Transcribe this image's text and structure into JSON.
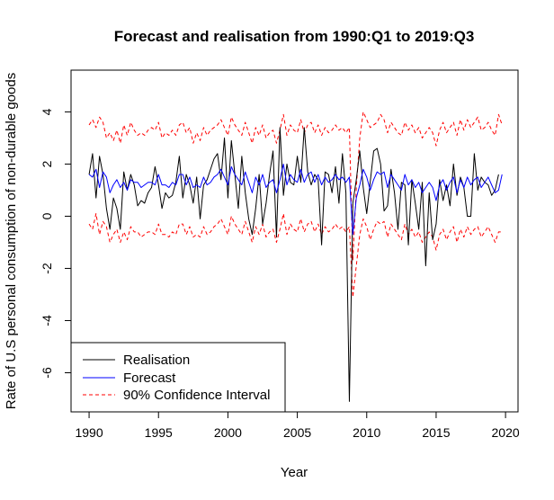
{
  "chart_data": {
    "type": "line",
    "title": "Forecast and realisation from 1990:Q1 to 2019:Q3",
    "xlabel": "Year",
    "ylabel": "Rate of U.S personal consumption of non-durable goods",
    "xlim": [
      1988.7,
      2020.9
    ],
    "ylim": [
      -7.5,
      5.6
    ],
    "xticks": [
      1990,
      1995,
      2000,
      2005,
      2010,
      2015,
      2020
    ],
    "yticks": [
      4,
      2,
      0,
      -2,
      -4,
      -6
    ],
    "legend_position": "bottom-left",
    "x_start": 1990.0,
    "x_step": 0.25,
    "series": [
      {
        "name": "Realisation",
        "color": "#000000",
        "dash": "solid",
        "values": [
          1.6,
          2.4,
          0.7,
          2.3,
          1.6,
          0.3,
          -0.5,
          0.7,
          0.3,
          -0.5,
          1.7,
          1.0,
          1.6,
          1.2,
          0.4,
          0.6,
          0.5,
          0.9,
          1.1,
          1.9,
          1.2,
          0.3,
          0.9,
          0.7,
          0.8,
          1.3,
          2.3,
          0.7,
          1.6,
          1.2,
          0.5,
          1.5,
          -0.1,
          1.2,
          1.4,
          1.8,
          2.2,
          2.4,
          1.4,
          3.0,
          0.7,
          2.9,
          1.6,
          0.3,
          2.3,
          0.9,
          -0.1,
          -0.7,
          0.3,
          1.6,
          -0.3,
          0.5,
          1.6,
          2.5,
          -0.8,
          3.4,
          0.8,
          2.0,
          1.3,
          1.2,
          2.3,
          1.3,
          3.4,
          1.7,
          1.2,
          1.6,
          1.4,
          -1.1,
          1.7,
          1.6,
          0.9,
          1.9,
          0.5,
          2.4,
          0.9,
          -7.1,
          0.5,
          1.4,
          2.5,
          1.1,
          0.1,
          1.3,
          2.5,
          2.6,
          2.0,
          0.2,
          0.4,
          1.8,
          0.9,
          -0.5,
          1.3,
          1.2,
          -1.1,
          1.4,
          0.5,
          -0.5,
          1.3,
          -1.9,
          0.9,
          -0.9,
          -0.3,
          1.4,
          0.6,
          1.2,
          0.4,
          2.0,
          0.8,
          1.5,
          1.1,
          0.0,
          0.0,
          2.4,
          1.0,
          1.5,
          1.3,
          1.2,
          0.8,
          1.0,
          1.6
        ]
      },
      {
        "name": "Forecast",
        "color": "#0000ff",
        "dash": "solid",
        "values": [
          1.6,
          1.5,
          1.8,
          1.1,
          1.7,
          1.5,
          0.9,
          1.2,
          1.4,
          1.1,
          1.3,
          1.0,
          1.4,
          1.3,
          1.3,
          1.1,
          1.2,
          1.3,
          1.3,
          1.2,
          1.6,
          1.2,
          1.2,
          1.1,
          1.3,
          1.2,
          1.6,
          1.6,
          1.2,
          1.5,
          1.1,
          1.2,
          1.1,
          1.5,
          1.2,
          1.3,
          1.5,
          1.6,
          1.8,
          1.5,
          1.2,
          1.9,
          1.6,
          1.4,
          1.2,
          1.7,
          1.3,
          0.9,
          1.5,
          1.2,
          1.6,
          1.1,
          1.3,
          1.4,
          0.9,
          1.4,
          2.0,
          1.2,
          1.6,
          1.4,
          1.3,
          1.8,
          1.3,
          1.6,
          1.7,
          1.3,
          1.6,
          1.2,
          1.5,
          1.3,
          1.4,
          1.6,
          1.4,
          1.5,
          1.3,
          1.5,
          -0.7,
          0.7,
          1.2,
          1.8,
          1.5,
          1.0,
          1.4,
          1.7,
          1.6,
          1.7,
          1.1,
          1.6,
          1.4,
          1.2,
          1.0,
          1.6,
          1.2,
          1.4,
          1.1,
          1.3,
          0.9,
          1.1,
          1.3,
          1.1,
          0.6,
          1.2,
          1.4,
          1.0,
          1.3,
          1.5,
          0.9,
          1.4,
          1.1,
          1.5,
          1.2,
          1.4,
          1.5,
          1.1,
          1.3,
          1.5,
          1.2,
          0.9,
          1.0,
          1.6
        ]
      },
      {
        "name": "90% Confidence Interval",
        "color": "#ff0000",
        "dash": "dashed",
        "upper": [
          3.5,
          3.7,
          3.4,
          3.8,
          3.6,
          3.0,
          3.2,
          2.9,
          3.3,
          2.8,
          3.5,
          3.1,
          3.6,
          3.3,
          3.1,
          3.2,
          3.1,
          3.3,
          3.4,
          3.3,
          3.6,
          3.0,
          3.2,
          3.1,
          3.3,
          3.1,
          3.5,
          3.6,
          3.2,
          3.4,
          2.8,
          3.2,
          2.9,
          3.4,
          3.1,
          3.3,
          3.4,
          3.5,
          3.7,
          3.4,
          3.1,
          3.8,
          3.5,
          3.3,
          3.1,
          3.6,
          3.2,
          2.8,
          3.4,
          3.1,
          3.5,
          3.0,
          3.2,
          3.3,
          2.8,
          3.3,
          3.9,
          3.1,
          3.5,
          3.3,
          3.2,
          3.7,
          3.2,
          3.5,
          3.6,
          3.2,
          3.5,
          3.1,
          3.4,
          3.2,
          3.3,
          3.5,
          3.3,
          3.4,
          3.2,
          3.4,
          -1.7,
          1.1,
          3.0,
          4.0,
          3.7,
          3.4,
          3.5,
          3.6,
          3.9,
          3.7,
          3.2,
          3.6,
          3.4,
          3.2,
          3.1,
          3.6,
          3.3,
          3.5,
          3.2,
          3.4,
          3.0,
          3.2,
          3.4,
          3.2,
          2.7,
          3.3,
          3.6,
          3.2,
          3.4,
          3.6,
          3.1,
          3.7,
          3.3,
          3.7,
          3.4,
          3.6,
          3.8,
          3.3,
          3.4,
          3.6,
          3.3,
          3.1,
          3.9,
          3.5
        ],
        "lower": [
          -0.3,
          -0.5,
          0.1,
          -0.7,
          -0.2,
          -0.4,
          -1.0,
          -0.7,
          -0.5,
          -1.0,
          -0.6,
          -0.9,
          -0.4,
          -0.6,
          -0.6,
          -0.8,
          -0.7,
          -0.6,
          -0.6,
          -0.7,
          -0.3,
          -0.7,
          -0.7,
          -0.8,
          -0.6,
          -0.7,
          -0.3,
          -0.3,
          -0.7,
          -0.4,
          -0.8,
          -0.7,
          -0.8,
          -0.4,
          -0.7,
          -0.6,
          -0.4,
          -0.3,
          -0.1,
          -0.4,
          -0.7,
          0.0,
          -0.3,
          -0.5,
          -0.7,
          -0.2,
          -0.6,
          -1.0,
          -0.4,
          -0.7,
          -0.3,
          -0.8,
          -0.6,
          -0.5,
          -1.0,
          -0.5,
          0.1,
          -0.7,
          -0.3,
          -0.5,
          -0.6,
          -0.1,
          -0.6,
          -0.3,
          -0.2,
          -0.6,
          -0.3,
          -0.7,
          -0.4,
          -0.6,
          -0.5,
          -0.3,
          -0.5,
          -0.4,
          -0.6,
          -0.4,
          -3.1,
          -1.9,
          -0.7,
          -0.1,
          -0.4,
          -0.9,
          -0.5,
          -0.2,
          -0.3,
          -0.2,
          -0.8,
          -0.3,
          -0.5,
          -0.7,
          -0.9,
          -0.3,
          -0.7,
          -0.5,
          -0.8,
          -0.6,
          -1.0,
          -0.8,
          -0.6,
          -0.8,
          -1.3,
          -0.7,
          -0.5,
          -0.9,
          -0.6,
          -0.4,
          -1.0,
          -0.5,
          -0.8,
          -0.4,
          -0.7,
          -0.5,
          -0.4,
          -0.8,
          -0.6,
          -0.4,
          -0.7,
          -1.0,
          -0.6,
          -0.6
        ]
      }
    ]
  }
}
